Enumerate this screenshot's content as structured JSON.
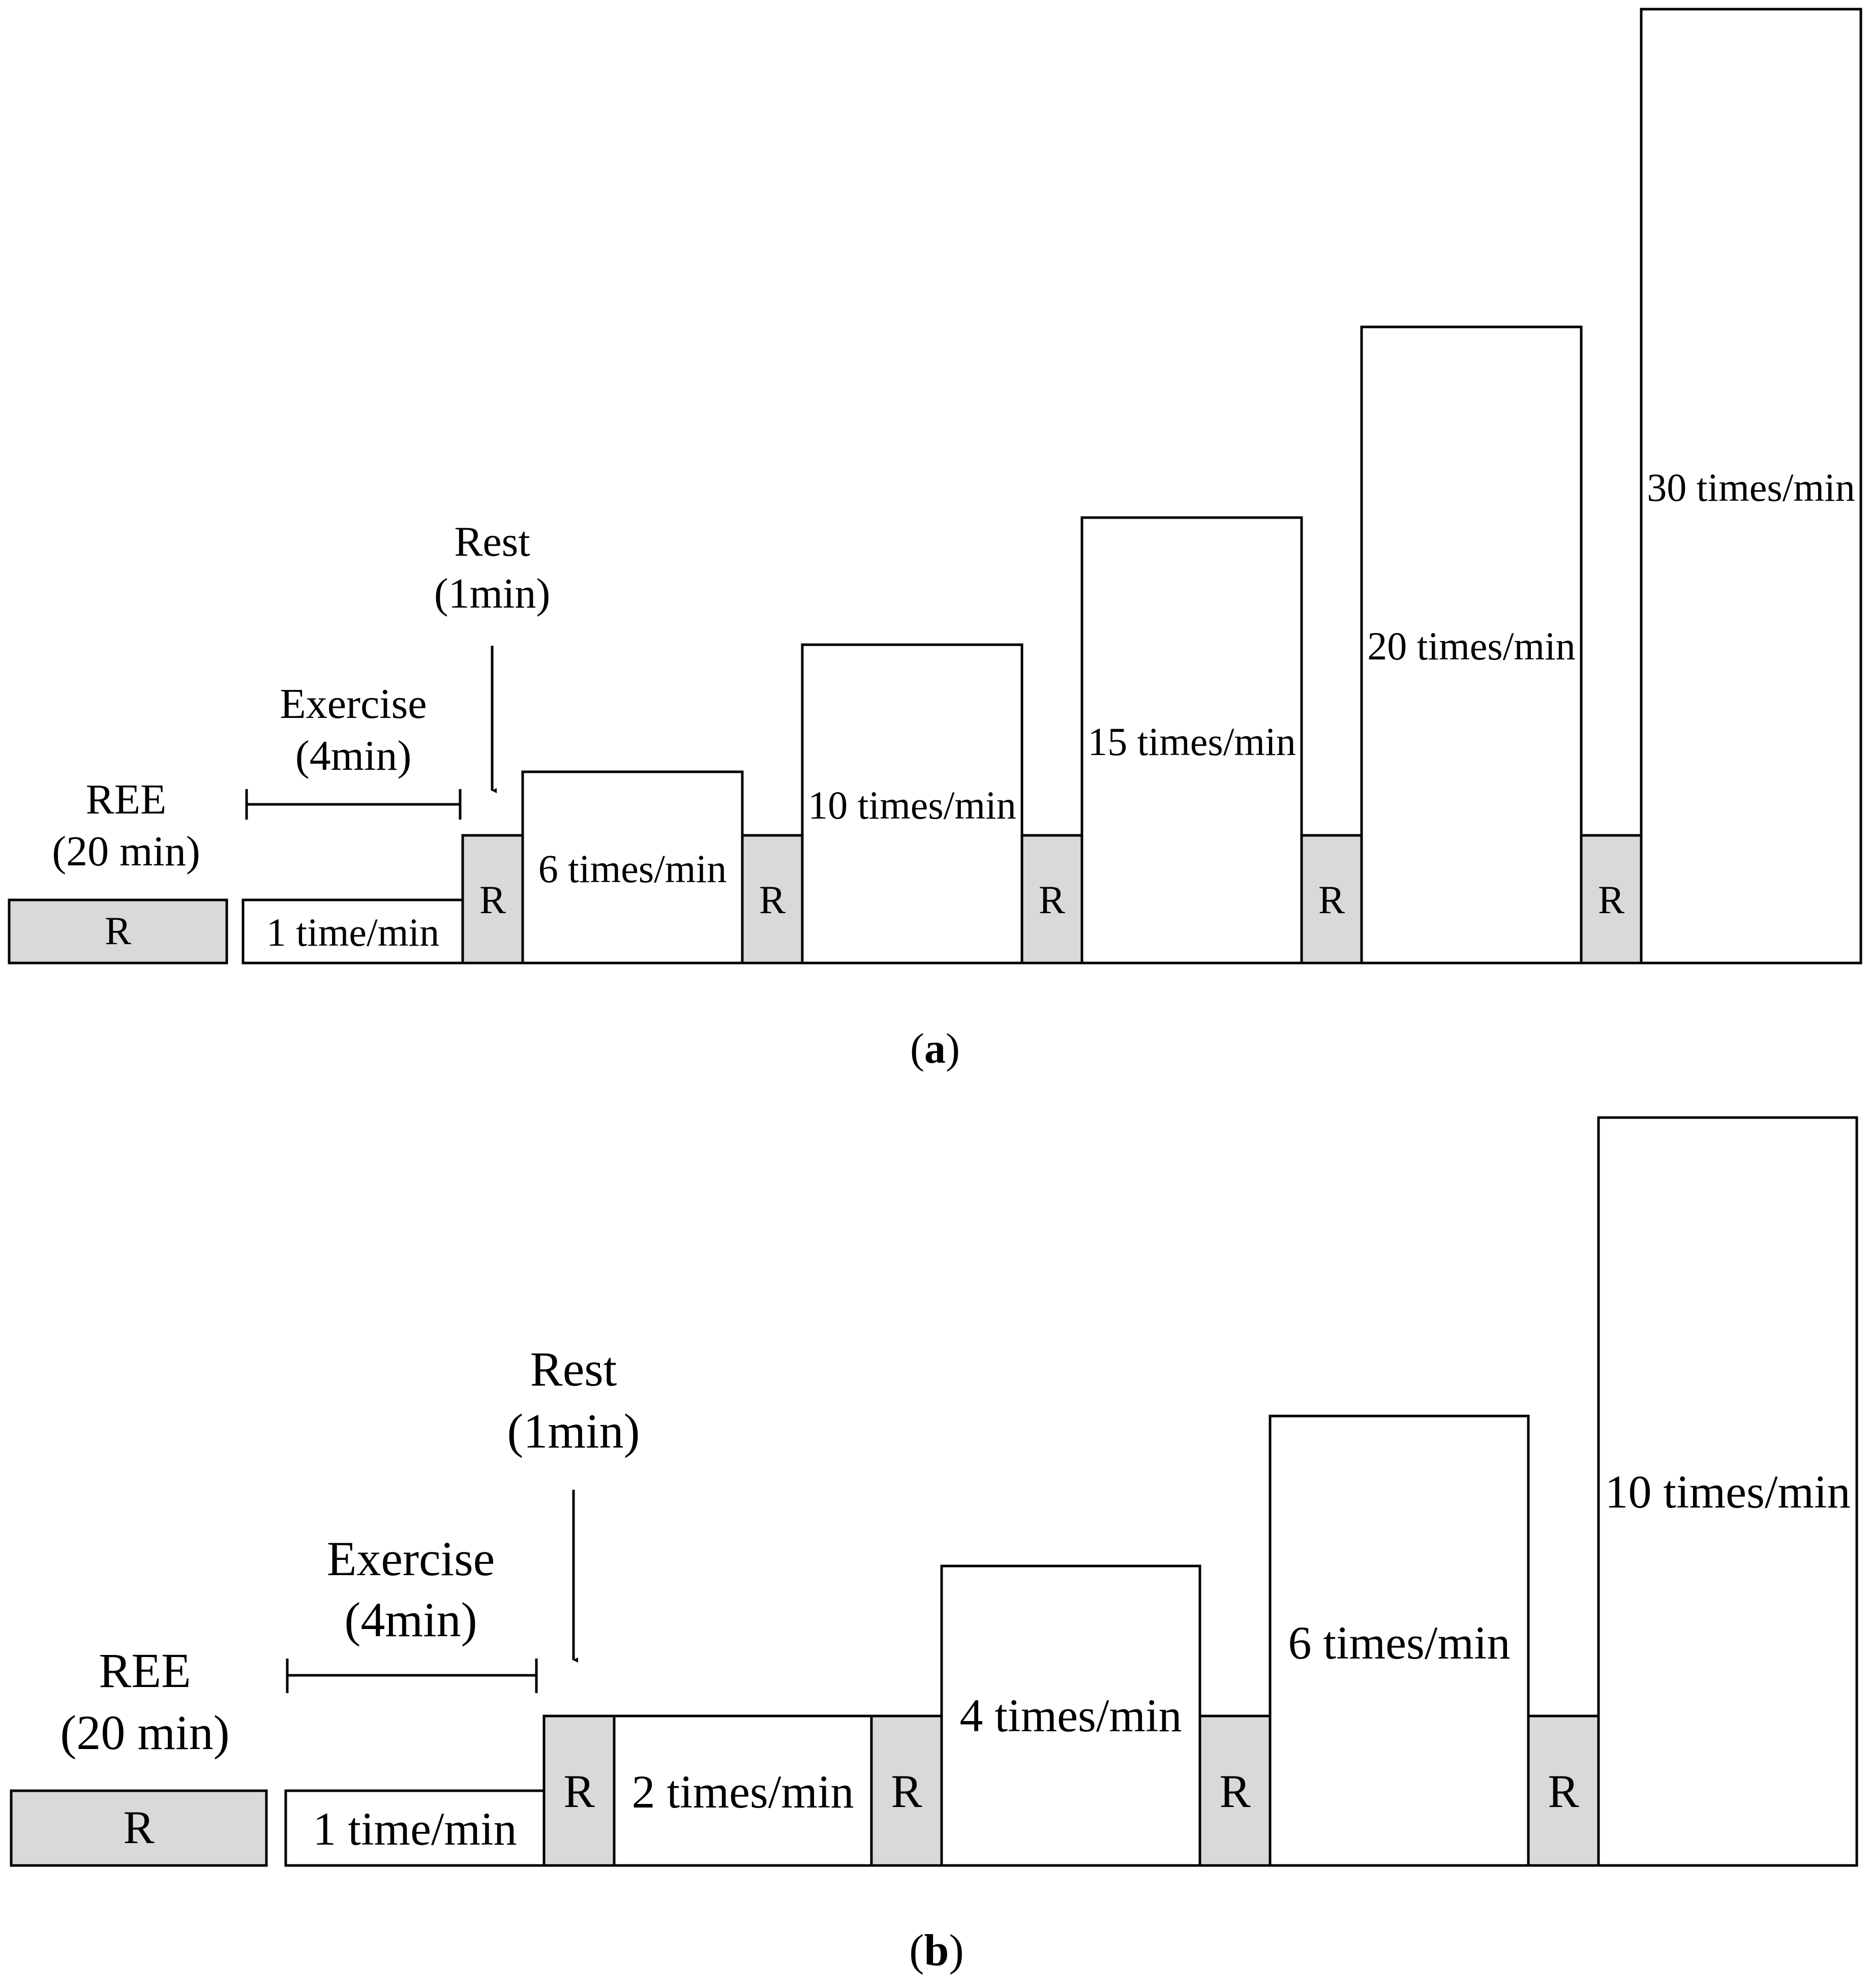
{
  "panel_a": {
    "ree_label": "REE",
    "ree_duration": "(20 min)",
    "exercise_label": "Exercise",
    "exercise_duration": "(4min)",
    "rest_label": "Rest",
    "rest_duration": "(1min)",
    "rest_block_label": "R",
    "stages": [
      "1 time/min",
      "6 times/min",
      "10 times/min",
      "15 times/min",
      "20 times/min",
      "30 times/min"
    ],
    "caption_open": "(",
    "caption_letter": "a",
    "caption_close": ")"
  },
  "panel_b": {
    "ree_label": "REE",
    "ree_duration": "(20 min)",
    "exercise_label": "Exercise",
    "exercise_duration": "(4min)",
    "rest_label": "Rest",
    "rest_duration": "(1min)",
    "rest_block_label": "R",
    "stages": [
      "1 time/min",
      "2 times/min",
      "4 times/min",
      "6 times/min",
      "10 times/min"
    ],
    "caption_open": "(",
    "caption_letter": "b",
    "caption_close": ")"
  }
}
